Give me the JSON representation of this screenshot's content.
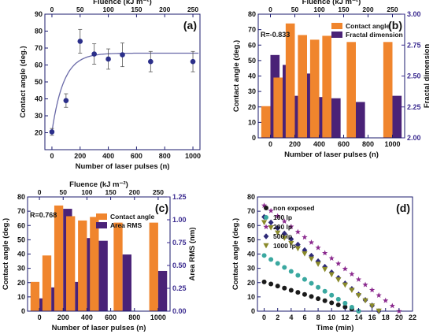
{
  "chart_data": [
    {
      "panel": "(a)",
      "type": "scatter",
      "xlabel": "Number of laser pulses (n)",
      "ylabel": "Contact angle (deg.)",
      "top_axis_label": "Fluence (kJ m⁻²)",
      "xlim": [
        -50,
        1050
      ],
      "ylim": [
        10,
        90
      ],
      "x_ticks": [
        "0",
        "200",
        "400",
        "600",
        "800",
        "1000"
      ],
      "y_ticks": [
        "20",
        "30",
        "40",
        "50",
        "60",
        "70",
        "80",
        "90"
      ],
      "top_ticks": [
        "0",
        "50",
        "100",
        "150",
        "200",
        "250"
      ],
      "x": [
        0,
        100,
        200,
        300,
        400,
        500,
        700,
        1000
      ],
      "values": [
        20.5,
        39,
        74,
        66.5,
        63.5,
        66,
        62,
        62
      ],
      "errors": [
        2,
        4,
        7,
        6,
        6,
        7,
        6,
        6
      ],
      "fit_curve": {
        "type": "exponential",
        "asymptote": 67,
        "start": 20.5,
        "rate_per_pulse": 0.012
      },
      "color": "#2b2f8a"
    },
    {
      "panel": "(b)",
      "type": "bar",
      "xlabel": "Number of laser pulses (n)",
      "ylabel": "Contact angle (deg.)",
      "y2label": "Fractal dimension",
      "top_axis_label": "Fluence (kJ m⁻²)",
      "annotation": "R=-0.833",
      "xlim": [
        -100,
        1100
      ],
      "ylim": [
        0,
        80
      ],
      "y2lim": [
        2.0,
        3.0
      ],
      "x_ticks": [
        "0",
        "200",
        "400",
        "600",
        "800",
        "1000"
      ],
      "y_ticks": [
        "0",
        "10",
        "20",
        "30",
        "40",
        "50",
        "60",
        "70",
        "80"
      ],
      "y2_ticks": [
        "2.00",
        "2.25",
        "2.50",
        "2.75",
        "3.00"
      ],
      "top_ticks": [
        "0",
        "50",
        "100",
        "150",
        "200",
        "250"
      ],
      "x": [
        0,
        100,
        200,
        300,
        400,
        500,
        700,
        1000
      ],
      "series": [
        {
          "name": "Contact angle",
          "axis": "left",
          "values": [
            20.5,
            39,
            74,
            66.5,
            63.5,
            66,
            62,
            62
          ],
          "color": "#f0852d"
        },
        {
          "name": "Fractal dimension",
          "axis": "right",
          "values": [
            2.67,
            2.59,
            2.34,
            2.52,
            2.33,
            2.32,
            2.29,
            2.34
          ],
          "color": "#4a2277"
        }
      ]
    },
    {
      "panel": "(c)",
      "type": "bar",
      "xlabel": "Number of laser pulses (n)",
      "ylabel": "Contact angle (deg.)",
      "y2label": "Area RMS (nm)",
      "top_axis_label": "Fluence (kJ m⁻²)",
      "annotation": "R=0.768",
      "xlim": [
        -100,
        1100
      ],
      "ylim": [
        0,
        80
      ],
      "y2lim": [
        0.0,
        1.25
      ],
      "x_ticks": [
        "0",
        "200",
        "400",
        "600",
        "800",
        "1000"
      ],
      "y_ticks": [
        "0",
        "10",
        "20",
        "30",
        "40",
        "50",
        "60",
        "70",
        "80"
      ],
      "y2_ticks": [
        "0.00",
        "0.25",
        "0.50",
        "0.75",
        "1.00",
        "1.25"
      ],
      "top_ticks": [
        "0",
        "50",
        "100",
        "150",
        "200",
        "250"
      ],
      "x": [
        0,
        100,
        200,
        300,
        400,
        500,
        700,
        1000
      ],
      "series": [
        {
          "name": "Contact angle",
          "axis": "left",
          "values": [
            20.5,
            39,
            74,
            66.5,
            63.5,
            66,
            62,
            62
          ],
          "color": "#f0852d"
        },
        {
          "name": "Area RMS",
          "axis": "right",
          "values": [
            0.14,
            0.26,
            1.12,
            0.32,
            0.8,
            0.77,
            0.62,
            0.44
          ],
          "color": "#4a2277"
        }
      ]
    },
    {
      "panel": "(d)",
      "type": "scatter",
      "xlabel": "Time (min)",
      "ylabel": "Contact angle (deg.)",
      "xlim": [
        -1,
        22
      ],
      "ylim": [
        0,
        80
      ],
      "x_ticks": [
        "0",
        "2",
        "4",
        "6",
        "8",
        "10",
        "12",
        "14",
        "16",
        "18",
        "20",
        "22"
      ],
      "y_ticks": [
        "0",
        "10",
        "20",
        "30",
        "40",
        "50",
        "60",
        "70",
        "80"
      ],
      "series": [
        {
          "name": "non exposed",
          "marker": "circle",
          "color": "#1a1a1a",
          "start": 20.5,
          "end_time": 14
        },
        {
          "name": "100 lp",
          "marker": "circle",
          "color": "#3aa8a0",
          "start": 39,
          "end_time": 14
        },
        {
          "name": "200 lp",
          "marker": "star",
          "color": "#8b2a8e",
          "start": 74,
          "end_time": 20
        },
        {
          "name": "500 lp",
          "marker": "diamond",
          "color": "#2e2a78",
          "start": 66,
          "end_time": 17
        },
        {
          "name": "1000 lp",
          "marker": "triangle",
          "color": "#8a8a2a",
          "start": 62,
          "end_time": 17
        }
      ]
    }
  ]
}
